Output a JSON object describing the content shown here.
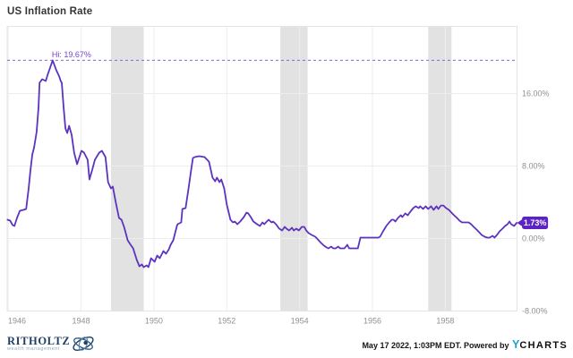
{
  "header": {
    "title": "US Inflation Rate"
  },
  "colors": {
    "line": "#5c33c0",
    "dashed_hi_line": "#8468cf",
    "hi_label_text": "#7049c7",
    "badge_fill": "#5c22c4",
    "badge_text": "#ffffff",
    "recession_band": "#e2e2e2",
    "gridline": "#ededed",
    "plot_border": "#e4e4e4",
    "tick_text": "#8f8f8f",
    "title_text": "#363636",
    "brand_navy": "#1d4064",
    "ycharts_blue": "#18a2dd"
  },
  "chart_data": {
    "type": "line",
    "title": "US Inflation Rate",
    "xlabel": "",
    "ylabel": "",
    "xlim": [
      1945.97,
      1959.97
    ],
    "ylim": [
      -8,
      23.41
    ],
    "x_ticks": [
      1946,
      1948,
      1950,
      1952,
      1954,
      1956,
      1958
    ],
    "y_ticks": [
      {
        "value": 16,
        "label": "16.00%"
      },
      {
        "value": 8,
        "label": "8.00%"
      },
      {
        "value": 0,
        "label": "0.00%"
      },
      {
        "value": -8,
        "label": "-8.00%"
      }
    ],
    "grid": true,
    "legend": "none",
    "recession_bands": [
      [
        1948.82,
        1949.72
      ],
      [
        1953.47,
        1954.22
      ],
      [
        1957.53,
        1958.17
      ]
    ],
    "hi_annotation": {
      "label": "Hi: 19.67%",
      "value": 19.67,
      "year": 1947.22
    },
    "last_point_badge": {
      "label": "1.73%",
      "value": 1.73
    },
    "series": [
      {
        "name": "US Inflation Rate",
        "points": [
          [
            1945.98,
            2.07
          ],
          [
            1946.05,
            1.98
          ],
          [
            1946.12,
            1.48
          ],
          [
            1946.17,
            1.38
          ],
          [
            1946.24,
            2.27
          ],
          [
            1946.32,
            3.06
          ],
          [
            1946.42,
            3.16
          ],
          [
            1946.49,
            3.26
          ],
          [
            1946.56,
            5.53
          ],
          [
            1946.61,
            7.51
          ],
          [
            1946.66,
            9.28
          ],
          [
            1946.71,
            10.07
          ],
          [
            1946.78,
            11.75
          ],
          [
            1946.83,
            14.42
          ],
          [
            1946.86,
            17.19
          ],
          [
            1946.93,
            17.58
          ],
          [
            1947.03,
            17.38
          ],
          [
            1947.08,
            18.07
          ],
          [
            1947.15,
            18.86
          ],
          [
            1947.22,
            19.67
          ],
          [
            1947.32,
            18.57
          ],
          [
            1947.4,
            17.88
          ],
          [
            1947.44,
            17.38
          ],
          [
            1947.47,
            17.19
          ],
          [
            1947.52,
            14.42
          ],
          [
            1947.57,
            12.15
          ],
          [
            1947.62,
            11.65
          ],
          [
            1947.67,
            12.44
          ],
          [
            1947.74,
            11.46
          ],
          [
            1947.81,
            9.48
          ],
          [
            1947.89,
            8.2
          ],
          [
            1947.93,
            8.69
          ],
          [
            1948.01,
            9.68
          ],
          [
            1948.08,
            9.48
          ],
          [
            1948.18,
            8.69
          ],
          [
            1948.23,
            6.52
          ],
          [
            1948.3,
            7.51
          ],
          [
            1948.38,
            8.69
          ],
          [
            1948.5,
            9.48
          ],
          [
            1948.57,
            9.68
          ],
          [
            1948.67,
            8.99
          ],
          [
            1948.74,
            6.22
          ],
          [
            1948.82,
            5.53
          ],
          [
            1948.87,
            5.73
          ],
          [
            1948.94,
            4.25
          ],
          [
            1949.04,
            2.27
          ],
          [
            1949.11,
            2.07
          ],
          [
            1949.18,
            1.28
          ],
          [
            1949.28,
            -0.2
          ],
          [
            1949.36,
            -0.69
          ],
          [
            1949.43,
            -1.09
          ],
          [
            1949.53,
            -2.37
          ],
          [
            1949.6,
            -3.06
          ],
          [
            1949.67,
            -2.86
          ],
          [
            1949.72,
            -3.16
          ],
          [
            1949.8,
            -2.96
          ],
          [
            1949.85,
            -3.16
          ],
          [
            1949.92,
            -2.17
          ],
          [
            1950.02,
            -2.57
          ],
          [
            1950.09,
            -1.88
          ],
          [
            1950.16,
            -2.17
          ],
          [
            1950.26,
            -1.38
          ],
          [
            1950.33,
            -1.68
          ],
          [
            1950.41,
            -1.19
          ],
          [
            1950.46,
            -0.69
          ],
          [
            1950.53,
            -0.2
          ],
          [
            1950.63,
            1.38
          ],
          [
            1950.65,
            1.58
          ],
          [
            1950.75,
            1.78
          ],
          [
            1950.78,
            3.26
          ],
          [
            1950.87,
            3.36
          ],
          [
            1950.95,
            5.53
          ],
          [
            1951.02,
            7.51
          ],
          [
            1951.07,
            8.89
          ],
          [
            1951.12,
            8.99
          ],
          [
            1951.24,
            9.09
          ],
          [
            1951.39,
            8.99
          ],
          [
            1951.51,
            8.49
          ],
          [
            1951.61,
            6.72
          ],
          [
            1951.68,
            6.32
          ],
          [
            1951.73,
            6.72
          ],
          [
            1951.8,
            6.22
          ],
          [
            1951.85,
            6.52
          ],
          [
            1951.93,
            5.53
          ],
          [
            1952,
            3.75
          ],
          [
            1952.1,
            2.07
          ],
          [
            1952.17,
            1.78
          ],
          [
            1952.22,
            1.88
          ],
          [
            1952.29,
            1.58
          ],
          [
            1952.37,
            1.88
          ],
          [
            1952.47,
            2.37
          ],
          [
            1952.54,
            2.86
          ],
          [
            1952.59,
            2.77
          ],
          [
            1952.66,
            2.37
          ],
          [
            1952.73,
            1.88
          ],
          [
            1952.83,
            1.58
          ],
          [
            1952.91,
            1.38
          ],
          [
            1952.98,
            1.78
          ],
          [
            1953.03,
            1.58
          ],
          [
            1953.1,
            1.88
          ],
          [
            1953.15,
            2.07
          ],
          [
            1953.23,
            1.78
          ],
          [
            1953.27,
            1.88
          ],
          [
            1953.35,
            1.58
          ],
          [
            1953.44,
            1.09
          ],
          [
            1953.52,
            0.89
          ],
          [
            1953.59,
            1.28
          ],
          [
            1953.64,
            1.09
          ],
          [
            1953.71,
            0.89
          ],
          [
            1953.79,
            1.19
          ],
          [
            1953.84,
            0.89
          ],
          [
            1953.91,
            1.09
          ],
          [
            1953.98,
            0.89
          ],
          [
            1954.06,
            1.28
          ],
          [
            1954.13,
            1.28
          ],
          [
            1954.18,
            0.89
          ],
          [
            1954.25,
            0.59
          ],
          [
            1954.33,
            0.4
          ],
          [
            1954.43,
            0.2
          ],
          [
            1954.5,
            -0.1
          ],
          [
            1954.57,
            -0.4
          ],
          [
            1954.67,
            -0.79
          ],
          [
            1954.74,
            -0.99
          ],
          [
            1954.79,
            -1.09
          ],
          [
            1954.87,
            -0.89
          ],
          [
            1954.92,
            -1.09
          ],
          [
            1954.99,
            -1.09
          ],
          [
            1955.06,
            -0.89
          ],
          [
            1955.11,
            -1.09
          ],
          [
            1955.23,
            -1.09
          ],
          [
            1955.31,
            -0.69
          ],
          [
            1955.36,
            -1.09
          ],
          [
            1955.48,
            -1.09
          ],
          [
            1955.6,
            -1.09
          ],
          [
            1955.67,
            0.1
          ],
          [
            1955.8,
            0.1
          ],
          [
            1955.92,
            0.1
          ],
          [
            1956.04,
            0.1
          ],
          [
            1956.16,
            0.1
          ],
          [
            1956.21,
            0.2
          ],
          [
            1956.29,
            0.79
          ],
          [
            1956.38,
            1.38
          ],
          [
            1956.46,
            1.78
          ],
          [
            1956.53,
            2.07
          ],
          [
            1956.58,
            2.07
          ],
          [
            1956.63,
            1.88
          ],
          [
            1956.7,
            2.27
          ],
          [
            1956.78,
            2.57
          ],
          [
            1956.82,
            2.37
          ],
          [
            1956.9,
            2.77
          ],
          [
            1956.97,
            2.57
          ],
          [
            1957.02,
            2.86
          ],
          [
            1957.12,
            3.36
          ],
          [
            1957.19,
            3.56
          ],
          [
            1957.27,
            3.36
          ],
          [
            1957.31,
            3.56
          ],
          [
            1957.39,
            3.26
          ],
          [
            1957.46,
            3.56
          ],
          [
            1957.53,
            3.26
          ],
          [
            1957.61,
            3.56
          ],
          [
            1957.68,
            3.16
          ],
          [
            1957.76,
            3.56
          ],
          [
            1957.81,
            3.26
          ],
          [
            1957.88,
            3.65
          ],
          [
            1957.95,
            3.65
          ],
          [
            1958.02,
            3.36
          ],
          [
            1958.1,
            3.16
          ],
          [
            1958.17,
            2.86
          ],
          [
            1958.24,
            2.57
          ],
          [
            1958.32,
            2.27
          ],
          [
            1958.39,
            1.98
          ],
          [
            1958.46,
            1.78
          ],
          [
            1958.56,
            1.78
          ],
          [
            1958.64,
            1.78
          ],
          [
            1958.71,
            1.58
          ],
          [
            1958.78,
            1.28
          ],
          [
            1958.86,
            0.99
          ],
          [
            1958.93,
            0.69
          ],
          [
            1959,
            0.4
          ],
          [
            1959.08,
            0.2
          ],
          [
            1959.15,
            0.1
          ],
          [
            1959.22,
            0.1
          ],
          [
            1959.3,
            0.3
          ],
          [
            1959.35,
            0.1
          ],
          [
            1959.42,
            0.4
          ],
          [
            1959.49,
            0.79
          ],
          [
            1959.57,
            1.09
          ],
          [
            1959.64,
            1.38
          ],
          [
            1959.71,
            1.58
          ],
          [
            1959.76,
            1.88
          ],
          [
            1959.81,
            1.58
          ],
          [
            1959.89,
            1.38
          ],
          [
            1959.96,
            1.73
          ]
        ]
      }
    ]
  },
  "footer": {
    "brand": {
      "name": "RITHOLTZ",
      "subtitle": "wealth management"
    },
    "attribution": {
      "prefix": "May 17 2022, 1:03PM EDT. Powered by ",
      "ycharts_y": "Y",
      "ycharts_rest": "CHARTS"
    }
  }
}
